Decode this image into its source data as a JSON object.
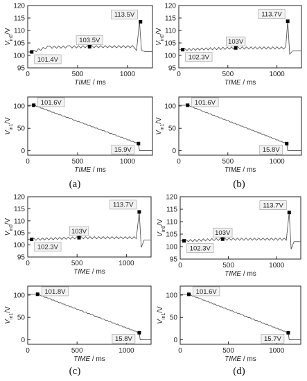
{
  "colors": {
    "trace": "#555555",
    "axis": "#222222",
    "callout_bg": "#f2f2f2",
    "callout_border": "#9a9a9a"
  },
  "x_label": {
    "main": "TIME",
    "unit": " / ms"
  },
  "panels": [
    {
      "label": "(a)",
      "upper": {
        "y_label": {
          "main": "V",
          "sub": "in0",
          "unit": "/V"
        },
        "ylim": [
          95,
          120
        ],
        "yticks": [
          95,
          100,
          105,
          110,
          115,
          120
        ],
        "xlim": [
          0,
          1250
        ],
        "xticks": [
          0,
          500,
          1000
        ],
        "annotations": [
          {
            "x": 40,
            "y": 101.4,
            "text": "101.4V"
          },
          {
            "x": 620,
            "y": 103.5,
            "text": "103.5V"
          },
          {
            "x": 1130,
            "y": 113.5,
            "text": "113.5V"
          }
        ]
      },
      "lower": {
        "y_label": {
          "main": "V",
          "sub": "in1",
          "unit": "/V"
        },
        "ylim": [
          -10,
          120
        ],
        "yticks": [
          0,
          50,
          100
        ],
        "xlim": [
          0,
          1250
        ],
        "xticks": [
          0,
          500,
          1000
        ],
        "annotations": [
          {
            "x": 60,
            "y": 101.6,
            "text": "101.6V"
          },
          {
            "x": 1110,
            "y": 15.9,
            "text": "15.9V"
          }
        ]
      }
    },
    {
      "label": "(b)",
      "upper": {
        "y_label": {
          "main": "V",
          "sub": "in0",
          "unit": "/V"
        },
        "ylim": [
          95,
          120
        ],
        "yticks": [
          95,
          100,
          105,
          110,
          115,
          120
        ],
        "xlim": [
          0,
          1250
        ],
        "xticks": [
          0,
          500,
          1000
        ],
        "annotations": [
          {
            "x": 40,
            "y": 102.3,
            "text": "102.3V"
          },
          {
            "x": 580,
            "y": 103,
            "text": "103V"
          },
          {
            "x": 1110,
            "y": 113.7,
            "text": "113.7V"
          }
        ]
      },
      "lower": {
        "y_label": {
          "main": "V",
          "sub": "in1",
          "unit": "/V"
        },
        "ylim": [
          -10,
          120
        ],
        "yticks": [
          0,
          50,
          100
        ],
        "xlim": [
          0,
          1250
        ],
        "xticks": [
          0,
          500,
          1000
        ],
        "annotations": [
          {
            "x": 90,
            "y": 101.6,
            "text": "101.6V"
          },
          {
            "x": 1100,
            "y": 15.8,
            "text": "15.8V"
          }
        ]
      }
    },
    {
      "label": "(c)",
      "upper": {
        "y_label": {
          "main": "V",
          "sub": "in0",
          "unit": "/V"
        },
        "ylim": [
          95,
          120
        ],
        "yticks": [
          95,
          100,
          105,
          110,
          115,
          120
        ],
        "xlim": [
          0,
          1250
        ],
        "xticks": [
          0,
          500,
          1000
        ],
        "annotations": [
          {
            "x": 40,
            "y": 102.3,
            "text": "102.3V"
          },
          {
            "x": 520,
            "y": 103,
            "text": "103V"
          },
          {
            "x": 1130,
            "y": 113.7,
            "text": "113.7V"
          }
        ]
      },
      "lower": {
        "y_label": {
          "main": "V",
          "sub": "in1",
          "unit": "/V"
        },
        "ylim": [
          -10,
          120
        ],
        "yticks": [
          0,
          50,
          100
        ],
        "xlim": [
          0,
          1250
        ],
        "xticks": [
          0,
          500,
          1000
        ],
        "annotations": [
          {
            "x": 100,
            "y": 101.8,
            "text": "101.8V"
          },
          {
            "x": 1130,
            "y": 15.8,
            "text": "15.8V"
          }
        ]
      }
    },
    {
      "label": "(d)",
      "upper": {
        "y_label": {
          "main": "V",
          "sub": "in0",
          "unit": "/V"
        },
        "ylim": [
          95,
          120
        ],
        "yticks": [
          95,
          100,
          105,
          110,
          115,
          120
        ],
        "xlim": [
          0,
          1250
        ],
        "xticks": [
          0,
          500,
          1000
        ],
        "annotations": [
          {
            "x": 40,
            "y": 102.3,
            "text": "102.3V"
          },
          {
            "x": 440,
            "y": 103,
            "text": "103V"
          },
          {
            "x": 1130,
            "y": 113.7,
            "text": "113.7V"
          }
        ]
      },
      "lower": {
        "y_label": {
          "main": "V",
          "sub": "in1",
          "unit": "/V"
        },
        "ylim": [
          -10,
          120
        ],
        "yticks": [
          0,
          50,
          100
        ],
        "xlim": [
          0,
          1250
        ],
        "xticks": [
          0,
          500,
          1000
        ],
        "annotations": [
          {
            "x": 90,
            "y": 101.6,
            "text": "101.6V"
          },
          {
            "x": 1120,
            "y": 15.7,
            "text": "15.7V"
          }
        ]
      }
    }
  ],
  "chart_data": [
    {
      "type": "line",
      "panel": "(a)",
      "plot": "upper",
      "ylim": [
        95,
        120
      ],
      "xlim": [
        0,
        1250
      ],
      "series": [
        {
          "x": [
            0,
            40,
            200,
            400,
            620,
            800,
            1050,
            1090,
            1120,
            1140,
            1180,
            1250
          ],
          "y": [
            101.4,
            101.4,
            103.3,
            103.4,
            103.5,
            103.5,
            103.5,
            102,
            113.5,
            102,
            101.5,
            101.5
          ]
        }
      ]
    },
    {
      "type": "line",
      "panel": "(a)",
      "plot": "lower",
      "ylim": [
        -10,
        120
      ],
      "xlim": [
        0,
        1250
      ],
      "series": [
        {
          "x": [
            0,
            60,
            1110,
            1120,
            1250
          ],
          "y": [
            101.6,
            101.6,
            15.9,
            0,
            0
          ]
        }
      ]
    },
    {
      "type": "line",
      "panel": "(b)",
      "plot": "upper",
      "ylim": [
        95,
        120
      ],
      "xlim": [
        0,
        1250
      ],
      "series": [
        {
          "x": [
            0,
            40,
            580,
            1090,
            1110,
            1130,
            1160,
            1250
          ],
          "y": [
            102.3,
            102.3,
            103,
            103,
            113.7,
            100.5,
            101.8,
            101.8
          ]
        }
      ]
    },
    {
      "type": "line",
      "panel": "(b)",
      "plot": "lower",
      "ylim": [
        -10,
        120
      ],
      "xlim": [
        0,
        1250
      ],
      "series": [
        {
          "x": [
            0,
            90,
            1100,
            1110,
            1250
          ],
          "y": [
            101.6,
            101.6,
            15.8,
            0,
            0
          ]
        }
      ]
    },
    {
      "type": "line",
      "panel": "(c)",
      "plot": "upper",
      "ylim": [
        95,
        120
      ],
      "xlim": [
        0,
        1250
      ],
      "series": [
        {
          "x": [
            0,
            40,
            520,
            1100,
            1130,
            1150,
            1180,
            1250
          ],
          "y": [
            102.3,
            102.3,
            103,
            103,
            113.7,
            99,
            102,
            102
          ]
        }
      ]
    },
    {
      "type": "line",
      "panel": "(c)",
      "plot": "lower",
      "ylim": [
        -10,
        120
      ],
      "xlim": [
        0,
        1250
      ],
      "series": [
        {
          "x": [
            0,
            100,
            1130,
            1140,
            1250
          ],
          "y": [
            101.8,
            101.8,
            15.8,
            0,
            0
          ]
        }
      ]
    },
    {
      "type": "line",
      "panel": "(d)",
      "plot": "upper",
      "ylim": [
        95,
        120
      ],
      "xlim": [
        0,
        1250
      ],
      "series": [
        {
          "x": [
            0,
            40,
            440,
            1100,
            1130,
            1150,
            1180,
            1250
          ],
          "y": [
            102.3,
            102.3,
            103,
            103,
            113.7,
            99,
            102,
            102
          ]
        }
      ]
    },
    {
      "type": "line",
      "panel": "(d)",
      "plot": "lower",
      "ylim": [
        -10,
        120
      ],
      "xlim": [
        0,
        1250
      ],
      "series": [
        {
          "x": [
            0,
            90,
            1120,
            1130,
            1250
          ],
          "y": [
            101.6,
            101.6,
            15.7,
            0,
            0
          ]
        }
      ]
    }
  ]
}
